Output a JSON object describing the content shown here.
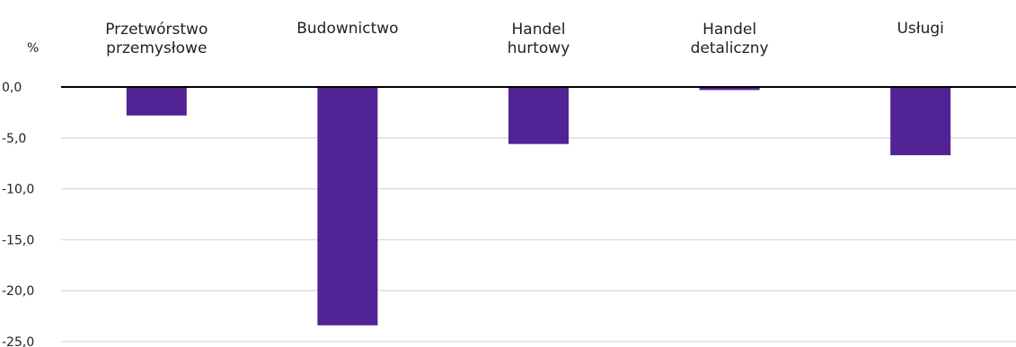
{
  "chart_data": {
    "type": "bar",
    "unit": "%",
    "categories": [
      [
        "Przetwórstwo",
        "przemysłowe"
      ],
      [
        "Budownictwo"
      ],
      [
        "Handel",
        "hurtowy"
      ],
      [
        "Handel",
        "detaliczny"
      ],
      [
        "Usługi"
      ]
    ],
    "values": [
      -2.8,
      -23.4,
      -5.6,
      -0.3,
      -6.7
    ],
    "ylim": [
      -25,
      0
    ],
    "yticks": [
      "0,0",
      "-5,0",
      "-10,0",
      "-15,0",
      "-20,0",
      "-25,0"
    ],
    "ytick_values": [
      0,
      -5,
      -10,
      -15,
      -20,
      -25
    ],
    "grid": true,
    "colors": {
      "bar": "#512394",
      "grid": "#d9d9d9",
      "zero_line": "#000000"
    }
  }
}
